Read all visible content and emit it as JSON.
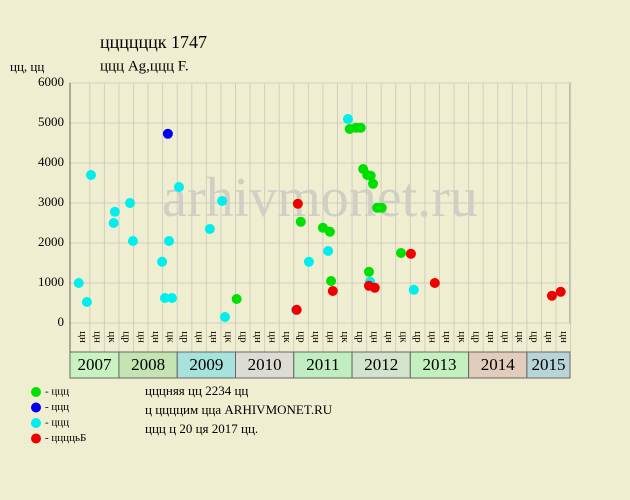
{
  "chart_data": {
    "type": "scatter",
    "title": "ццццццк 1747",
    "subtitle": "ццц Ag,ццц F.",
    "y_label": "цц, цц",
    "watermark": "arhivmonet.ru",
    "xlim": [
      2007.16,
      2015.74
    ],
    "ylim": [
      0,
      6000
    ],
    "yticks": [
      0,
      1000,
      2000,
      3000,
      4000,
      5000,
      6000
    ],
    "grid": true,
    "xticks": [
      {
        "value": 2007.375,
        "label": "цн"
      },
      {
        "value": 2007.625,
        "label": "цн"
      },
      {
        "value": 2007.875,
        "label": "цк"
      },
      {
        "value": 2008.125,
        "label": "цр"
      },
      {
        "value": 2008.375,
        "label": "цн"
      },
      {
        "value": 2008.625,
        "label": "цн"
      },
      {
        "value": 2008.875,
        "label": "цк"
      },
      {
        "value": 2009.125,
        "label": "цр"
      },
      {
        "value": 2009.375,
        "label": "цн"
      },
      {
        "value": 2009.625,
        "label": "цн"
      },
      {
        "value": 2009.875,
        "label": "цк"
      },
      {
        "value": 2010.125,
        "label": "цр"
      },
      {
        "value": 2010.375,
        "label": "цн"
      },
      {
        "value": 2010.625,
        "label": "цн"
      },
      {
        "value": 2010.875,
        "label": "цк"
      },
      {
        "value": 2011.125,
        "label": "цр"
      },
      {
        "value": 2011.375,
        "label": "цн"
      },
      {
        "value": 2011.625,
        "label": "цн"
      },
      {
        "value": 2011.875,
        "label": "цк"
      },
      {
        "value": 2012.125,
        "label": "цр"
      },
      {
        "value": 2012.375,
        "label": "цн"
      },
      {
        "value": 2012.625,
        "label": "цн"
      },
      {
        "value": 2012.875,
        "label": "цк"
      },
      {
        "value": 2013.125,
        "label": "цр"
      },
      {
        "value": 2013.375,
        "label": "цн"
      },
      {
        "value": 2013.625,
        "label": "цн"
      },
      {
        "value": 2013.875,
        "label": "цк"
      },
      {
        "value": 2014.125,
        "label": "цр"
      },
      {
        "value": 2014.375,
        "label": "цн"
      },
      {
        "value": 2014.625,
        "label": "цн"
      },
      {
        "value": 2014.875,
        "label": "цк"
      },
      {
        "value": 2015.125,
        "label": "цр"
      },
      {
        "value": 2015.375,
        "label": "цн"
      },
      {
        "value": 2015.625,
        "label": "цн"
      }
    ],
    "years": [
      {
        "label": "2007",
        "start": 2007.16,
        "end": 2008,
        "color": "#c8f2c0"
      },
      {
        "label": "2008",
        "start": 2008,
        "end": 2009,
        "color": "#c4e4b4"
      },
      {
        "label": "2009",
        "start": 2009,
        "end": 2010,
        "color": "#a8e2dc"
      },
      {
        "label": "2010",
        "start": 2010,
        "end": 2011,
        "color": "#dcdcd4"
      },
      {
        "label": "2011",
        "start": 2011,
        "end": 2012,
        "color": "#c0eec0"
      },
      {
        "label": "2012",
        "start": 2012,
        "end": 2013,
        "color": "#d2e4cc"
      },
      {
        "label": "2013",
        "start": 2013,
        "end": 2014,
        "color": "#c4f0c0"
      },
      {
        "label": "2014",
        "start": 2014,
        "end": 2015,
        "color": "#e2ccbc"
      },
      {
        "label": "2015",
        "start": 2015,
        "end": 2015.74,
        "color": "#b8d4d8"
      }
    ],
    "series": [
      {
        "name": "- ццц",
        "color": "#00e000",
        "x": [
          2010.02,
          2011.12,
          2011.5,
          2011.62,
          2011.64,
          2011.96,
          2012.07,
          2012.15,
          2012.19,
          2012.26,
          2012.32,
          2012.36,
          2012.29,
          2012.43,
          2012.51,
          2012.84
        ],
        "values": [
          600,
          2530,
          2380,
          2280,
          1050,
          4850,
          4880,
          4880,
          3850,
          3700,
          3680,
          3480,
          1280,
          2880,
          2880,
          1750
        ]
      },
      {
        "name": "- ццц",
        "color": "#0000ee",
        "x": [
          2008.84
        ],
        "values": [
          4730
        ]
      },
      {
        "name": "- ццц",
        "color": "#00eeee",
        "x": [
          2007.31,
          2007.45,
          2007.52,
          2007.91,
          2007.93,
          2008.19,
          2008.24,
          2008.74,
          2008.79,
          2008.86,
          2008.91,
          2009.03,
          2009.56,
          2009.77,
          2009.82,
          2011.04,
          2011.26,
          2011.59,
          2011.93,
          2012.31,
          2013.06
        ],
        "values": [
          1000,
          525,
          3700,
          2500,
          2780,
          3000,
          2050,
          1530,
          625,
          2050,
          625,
          3400,
          2350,
          3050,
          150,
          325,
          1530,
          1800,
          5100,
          1030,
          830
        ]
      },
      {
        "name": "- ццццьБ",
        "color": "#ee0000",
        "x": [
          2011.05,
          2011.07,
          2011.67,
          2012.29,
          2012.39,
          2013.01,
          2013.42,
          2015.43,
          2015.58
        ],
        "values": [
          330,
          2980,
          800,
          930,
          880,
          1730,
          1000,
          680,
          780
        ]
      }
    ],
    "notes": [
      "цццняя цц 2234 цц",
      "ц ццццим цца ARHIVMONET.RU",
      "ццц ц 20 ця 2017 цц."
    ]
  }
}
